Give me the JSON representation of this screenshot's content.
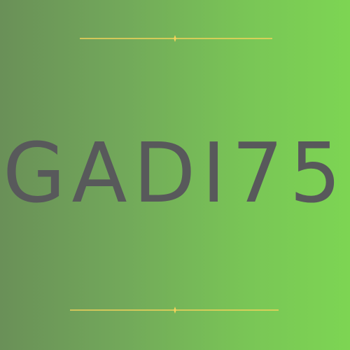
{
  "logo": {
    "text": "GADI75"
  },
  "colors": {
    "background_left": "#6a9058",
    "background_right": "#7dd553",
    "text": "#58595b",
    "divider": "#f4d35a"
  },
  "icons": {
    "divider_ornament": "sparkle-icon"
  }
}
